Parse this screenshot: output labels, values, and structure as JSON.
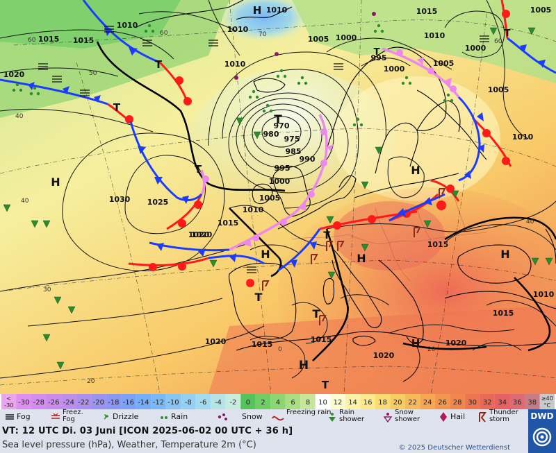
{
  "pressure_labels": [
    {
      "text": "1015"
    },
    {
      "text": "1010"
    },
    {
      "text": "1015"
    },
    {
      "text": "1010"
    },
    {
      "text": "1020"
    },
    {
      "text": "1020"
    },
    {
      "text": "1005"
    },
    {
      "text": "1000"
    },
    {
      "text": "995"
    },
    {
      "text": "1000"
    },
    {
      "text": "1005"
    },
    {
      "text": "1015"
    },
    {
      "text": "1010"
    },
    {
      "text": "1005"
    },
    {
      "text": "1000"
    },
    {
      "text": "1005"
    },
    {
      "text": "1010"
    },
    {
      "text": "1010"
    },
    {
      "text": "970"
    },
    {
      "text": "980"
    },
    {
      "text": "975"
    },
    {
      "text": "985"
    },
    {
      "text": "990"
    },
    {
      "text": "995"
    },
    {
      "text": "1000"
    },
    {
      "text": "1005"
    },
    {
      "text": "1010"
    },
    {
      "text": "1015"
    },
    {
      "text": "1020"
    },
    {
      "text": "1025"
    },
    {
      "text": "1030"
    },
    {
      "text": "1015"
    },
    {
      "text": "1010"
    },
    {
      "text": "1015"
    },
    {
      "text": "1015"
    },
    {
      "text": "1020"
    },
    {
      "text": "1020"
    },
    {
      "text": "1015"
    },
    {
      "text": "1020"
    },
    {
      "text": "1010"
    }
  ],
  "pressure_centers": [
    {
      "text": "H"
    },
    {
      "text": "T"
    },
    {
      "text": "T"
    },
    {
      "text": "T"
    },
    {
      "text": "T"
    },
    {
      "text": "T"
    },
    {
      "text": "H"
    },
    {
      "text": "H"
    },
    {
      "text": "H"
    },
    {
      "text": "T"
    },
    {
      "text": "H"
    },
    {
      "text": "H"
    },
    {
      "text": "T"
    },
    {
      "text": "H"
    },
    {
      "text": "H"
    },
    {
      "text": "H"
    },
    {
      "text": "T"
    },
    {
      "text": "T"
    },
    {
      "text": "T"
    }
  ],
  "graticule_labels": [
    {
      "text": "60"
    },
    {
      "text": "60"
    },
    {
      "text": "70"
    },
    {
      "text": "50"
    },
    {
      "text": "40"
    },
    {
      "text": "40"
    },
    {
      "text": "30"
    },
    {
      "text": "20"
    },
    {
      "text": "0"
    },
    {
      "text": "20"
    },
    {
      "text": "40"
    },
    {
      "text": "60"
    }
  ],
  "temperature_scale": [
    {
      "label": "<\n-30",
      "color": "#e9a5ee"
    },
    {
      "label": "-30",
      "color": "#df8ef2"
    },
    {
      "label": "-28",
      "color": "#d48cf0"
    },
    {
      "label": "-26",
      "color": "#c98ced"
    },
    {
      "label": "-24",
      "color": "#bd8eec"
    },
    {
      "label": "-22",
      "color": "#ad90ee"
    },
    {
      "label": "-20",
      "color": "#9a93f0"
    },
    {
      "label": "-18",
      "color": "#8a98f3"
    },
    {
      "label": "-16",
      "color": "#7ca2f5"
    },
    {
      "label": "-14",
      "color": "#74aef6"
    },
    {
      "label": "-12",
      "color": "#7ab9f7"
    },
    {
      "label": "-10",
      "color": "#86c5f6"
    },
    {
      "label": "-8",
      "color": "#93d0f3"
    },
    {
      "label": "-6",
      "color": "#a2dbee"
    },
    {
      "label": "-4",
      "color": "#b5e4e6"
    },
    {
      "label": "-2",
      "color": "#c8ecdf"
    },
    {
      "label": "0",
      "color": "#55c35a"
    },
    {
      "label": "2",
      "color": "#6fcd66"
    },
    {
      "label": "4",
      "color": "#8bd673"
    },
    {
      "label": "6",
      "color": "#a9de85"
    },
    {
      "label": "8",
      "color": "#c6e69a"
    },
    {
      "label": "10",
      "color": "#ffffff"
    },
    {
      "label": "12",
      "color": "#fdfbd0"
    },
    {
      "label": "14",
      "color": "#fcf3a8"
    },
    {
      "label": "16",
      "color": "#fbe98b"
    },
    {
      "label": "18",
      "color": "#fadc74"
    },
    {
      "label": "20",
      "color": "#f9cc63"
    },
    {
      "label": "22",
      "color": "#f7ba58"
    },
    {
      "label": "24",
      "color": "#f5a851"
    },
    {
      "label": "26",
      "color": "#f3974f"
    },
    {
      "label": "28",
      "color": "#f1864f"
    },
    {
      "label": "30",
      "color": "#ee7552"
    },
    {
      "label": "32",
      "color": "#ea6858"
    },
    {
      "label": "34",
      "color": "#e66262"
    },
    {
      "label": "36",
      "color": "#de6a73"
    },
    {
      "label": "38",
      "color": "#c97b83"
    },
    {
      "label": "≥40\n°C",
      "color": "#c9c9c9"
    }
  ],
  "legend": {
    "fog": "Fog",
    "freezing_fog": "Freez.\nFog",
    "drizzle": "Drizzle",
    "rain": "Rain",
    "snow": "Snow",
    "freezing_rain": "Freezing\nrain",
    "rain_shower": "Rain\nshower",
    "snow_shower": "Snow\nshower",
    "hail": "Hail",
    "thunderstorm": "Thunder\nstorm"
  },
  "info": {
    "valid_time": "VT: 12 UTC Di.  03 Juni [ICON 2025-06-02  00 UTC + 36 h]",
    "description": "Sea level pressure (hPa), Weather, Temperature 2m (°C)",
    "copyright": "© 2025 Deutscher Wetterdienst",
    "logo": "DWD"
  },
  "colors": {
    "warm_front": "#ff1a1a",
    "cold_front": "#1a3cff",
    "occlusion": "#ee88ee",
    "legend_bg": "#dfe3ee",
    "logo_bg": "#1f56a8"
  },
  "icons": {
    "weather": [
      "fog-icon",
      "freezing-fog-icon",
      "drizzle-icon",
      "rain-icon",
      "snow-icon",
      "freezing-rain-icon",
      "rain-shower-icon",
      "snow-shower-icon",
      "hail-icon",
      "thunderstorm-icon"
    ],
    "logo": "dwd-spiral-icon"
  }
}
